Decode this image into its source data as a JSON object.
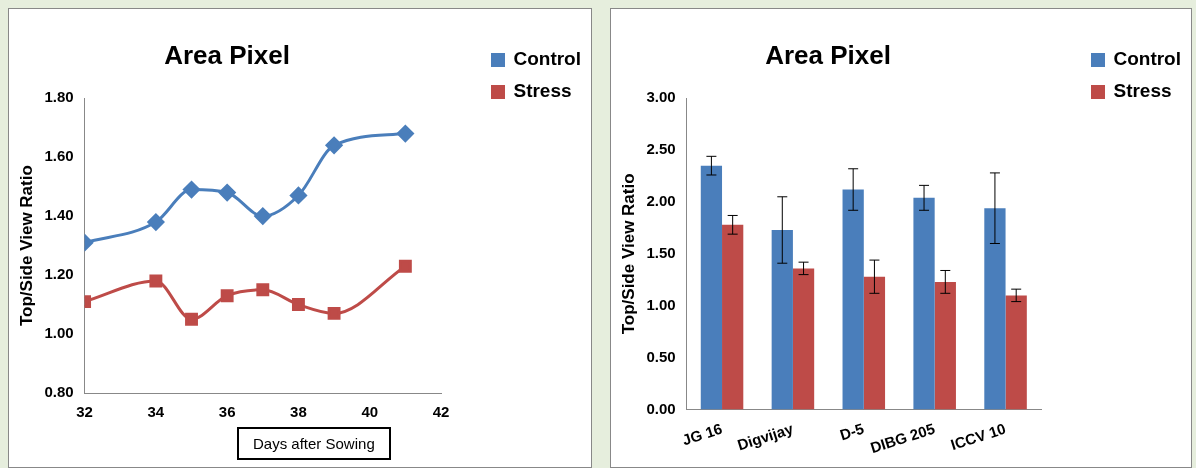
{
  "chart_data": [
    {
      "type": "line",
      "title": "Area Pixel",
      "xlabel": "Days after Sowing",
      "ylabel": "Top/Side View Ratio",
      "x": [
        32,
        34,
        35,
        36,
        37,
        38,
        39,
        41
      ],
      "series": [
        {
          "name": "Control",
          "color": "#4a7ebb",
          "marker": "diamond",
          "values": [
            1.31,
            1.38,
            1.49,
            1.48,
            1.4,
            1.47,
            1.64,
            1.68
          ]
        },
        {
          "name": "Stress",
          "color": "#be4b48",
          "marker": "square",
          "values": [
            1.11,
            1.18,
            1.05,
            1.13,
            1.15,
            1.1,
            1.07,
            1.23
          ]
        }
      ],
      "xlim": [
        32,
        42
      ],
      "xticks": [
        32,
        34,
        36,
        38,
        40,
        42
      ],
      "ylim": [
        0.8,
        1.8
      ],
      "yticks": [
        {
          "value": 0.8,
          "label": "0.80"
        },
        {
          "value": 1.0,
          "label": "1.00"
        },
        {
          "value": 1.2,
          "label": "1.20"
        },
        {
          "value": 1.4,
          "label": "1.40"
        },
        {
          "value": 1.6,
          "label": "1.60"
        },
        {
          "value": 1.8,
          "label": "1.80"
        }
      ],
      "grid": false,
      "legend": "top right"
    },
    {
      "type": "bar",
      "title": "Area Pixel",
      "ylabel": "Top/Side View Ratio",
      "categories": [
        "JG 16",
        "Digvijay",
        "D-5",
        "DIBG 205",
        "ICCV 10"
      ],
      "series": [
        {
          "name": "Control",
          "color": "#4a7ebb",
          "values": [
            2.35,
            1.73,
            2.12,
            2.04,
            1.94
          ],
          "errors": [
            0.09,
            0.32,
            0.2,
            0.12,
            0.34
          ]
        },
        {
          "name": "Stress",
          "color": "#be4b48",
          "values": [
            1.78,
            1.36,
            1.28,
            1.23,
            1.1
          ],
          "errors": [
            0.09,
            0.06,
            0.16,
            0.11,
            0.06
          ]
        }
      ],
      "ylim": [
        0,
        3
      ],
      "yticks": [
        {
          "value": 0,
          "label": "0.00"
        },
        {
          "value": 0.5,
          "label": "0.50"
        },
        {
          "value": 1,
          "label": "1.00"
        },
        {
          "value": 1.5,
          "label": "1.50"
        },
        {
          "value": 2,
          "label": "2.00"
        },
        {
          "value": 2.5,
          "label": "2.50"
        },
        {
          "value": 3,
          "label": "3.00"
        }
      ],
      "grid": false,
      "legend": "top right"
    }
  ]
}
